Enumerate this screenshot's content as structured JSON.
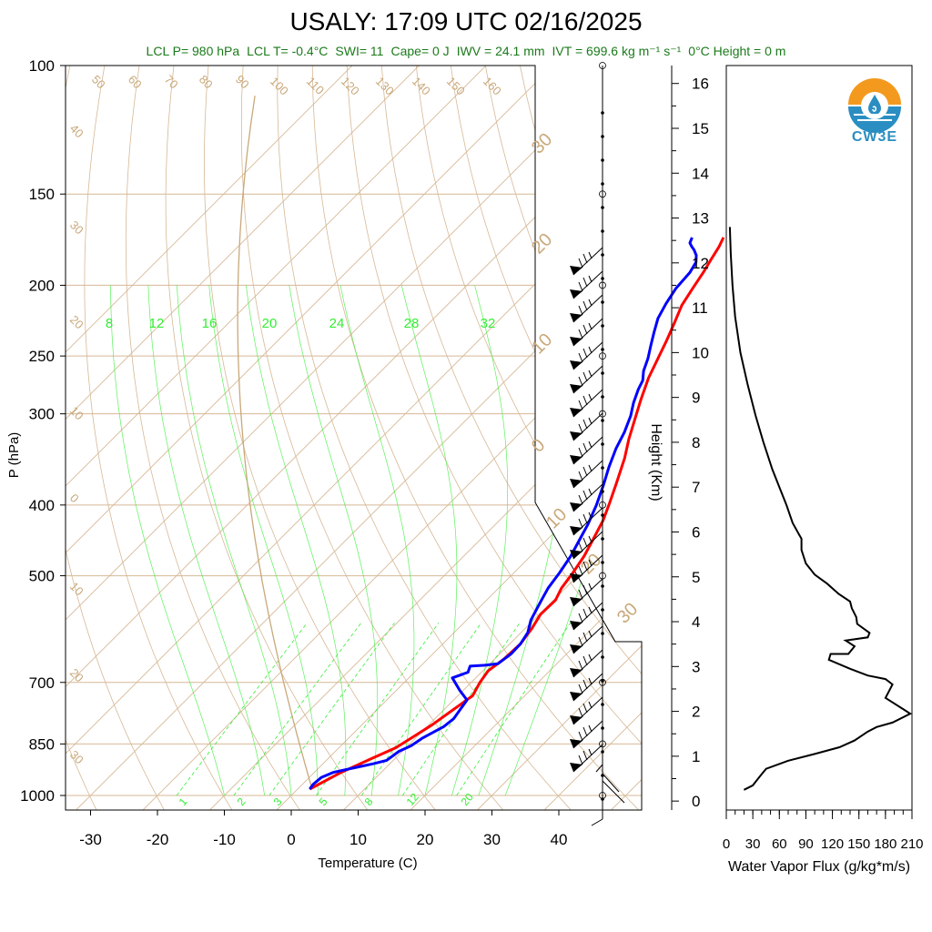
{
  "header": {
    "title": "USALY: 17:09 UTC 02/16/2025",
    "stats": [
      "LCL P= 980 hPa",
      "LCL T= -0.4°C",
      "SWI= 11",
      "Cape= 0 J",
      "IWV = 24.1 mm",
      "IVT = 699.6 kg m⁻¹ s⁻¹",
      "0°C Height = 0 m"
    ]
  },
  "logo": {
    "text": "CW3E",
    "icon": "cw3e-water-drop-logo",
    "colors": {
      "top": "#f39a1e",
      "bottom": "#2a8ec2"
    }
  },
  "colors": {
    "temperature": "#ff0000",
    "dewpoint": "#0000ff",
    "background_lines": "#d6b896",
    "mixing_ratio": "#33ee33",
    "stats_text": "#1a7a1a"
  },
  "chart_data": [
    {
      "type": "line",
      "kind": "skew-t",
      "xlabel": "Temperature (C)",
      "ylabel": "P (hPa)",
      "xticks": [
        -30,
        -20,
        -10,
        0,
        10,
        20,
        30,
        40
      ],
      "yticks": [
        100,
        150,
        200,
        250,
        300,
        400,
        500,
        700,
        850,
        1000
      ],
      "xlim": [
        -33,
        52
      ],
      "ylim": [
        1000,
        100
      ],
      "y_scale": "log",
      "isotherm_labels": [
        "50",
        "60",
        "70",
        "80",
        "90",
        "100",
        "110",
        "120",
        "130",
        "140",
        "150",
        "160",
        "40",
        "30",
        "20",
        "10",
        "0",
        "10",
        "20",
        "30"
      ],
      "skew_labels_right": [
        "30",
        "20",
        "10",
        "0",
        "10",
        "20",
        "30"
      ],
      "mixing_ratio_labels_top": [
        "8",
        "12",
        "16",
        "20",
        "24",
        "28",
        "32"
      ],
      "mixing_ratio_labels_bottom": [
        "1",
        "2",
        "3",
        "5",
        "8",
        "12",
        "20"
      ],
      "series": [
        {
          "name": "Temperature",
          "color": "#ff0000",
          "points": [
            [
              1.8,
              980
            ],
            [
              4,
              930
            ],
            [
              6.5,
              890
            ],
            [
              8.5,
              860
            ],
            [
              9.5,
              830
            ],
            [
              10.5,
              800
            ],
            [
              11.2,
              770
            ],
            [
              12.2,
              730
            ],
            [
              11.3,
              700
            ],
            [
              10.8,
              675
            ],
            [
              11.4,
              650
            ],
            [
              11.6,
              620
            ],
            [
              11.0,
              590
            ],
            [
              10.2,
              565
            ],
            [
              10.3,
              540
            ],
            [
              9.4,
              520
            ],
            [
              8.8,
              495
            ],
            [
              8.0,
              470
            ],
            [
              6.8,
              445
            ],
            [
              5.5,
              420
            ],
            [
              3.9,
              398
            ],
            [
              1.8,
              372
            ],
            [
              -0.6,
              345
            ],
            [
              -2.8,
              325
            ],
            [
              -4.9,
              305
            ],
            [
              -6.9,
              287
            ],
            [
              -9.0,
              268
            ],
            [
              -10.5,
              252
            ],
            [
              -11.9,
              238
            ],
            [
              -13.4,
              225
            ],
            [
              -14.9,
              213
            ],
            [
              -15.8,
              202
            ],
            [
              -16.6,
              192
            ],
            [
              -17.4,
              184
            ],
            [
              -18.1,
              177
            ],
            [
              -18.8,
              172
            ]
          ]
        },
        {
          "name": "Dewpoint",
          "color": "#0000ff",
          "points": [
            [
              1.8,
              980
            ],
            [
              1.6,
              965
            ],
            [
              1.8,
              945
            ],
            [
              2.8,
              930
            ],
            [
              5.5,
              915
            ],
            [
              7.5,
              905
            ],
            [
              9.0,
              895
            ],
            [
              9.5,
              870
            ],
            [
              10.5,
              855
            ],
            [
              11.0,
              835
            ],
            [
              12.5,
              805
            ],
            [
              12.8,
              785
            ],
            [
              12.0,
              740
            ],
            [
              9.5,
              718
            ],
            [
              6.5,
              690
            ],
            [
              8.0,
              678
            ],
            [
              7.4,
              665
            ],
            [
              9.5,
              663
            ],
            [
              11.2,
              660
            ],
            [
              11.7,
              640
            ],
            [
              11.6,
              620
            ],
            [
              11.0,
              598
            ],
            [
              9.6,
              575
            ],
            [
              8.8,
              555
            ],
            [
              8.2,
              540
            ],
            [
              7.4,
              520
            ],
            [
              6.8,
              495
            ],
            [
              6.0,
              470
            ],
            [
              4.8,
              445
            ],
            [
              3.8,
              425
            ],
            [
              2.2,
              400
            ],
            [
              0.3,
              376
            ],
            [
              -1.6,
              355
            ],
            [
              -3.3,
              335
            ],
            [
              -4.5,
              318
            ],
            [
              -6.0,
              302
            ],
            [
              -7.5,
              290
            ],
            [
              -8.8,
              278
            ],
            [
              -9.5,
              270
            ],
            [
              -10.8,
              262
            ],
            [
              -12.0,
              252
            ],
            [
              -13.5,
              242
            ],
            [
              -15.0,
              232
            ],
            [
              -16.5,
              222
            ],
            [
              -17.5,
              212
            ],
            [
              -18.3,
              202
            ],
            [
              -18.6,
              192
            ],
            [
              -19.2,
              186
            ],
            [
              -20.2,
              182
            ],
            [
              -21.3,
              179
            ],
            [
              -22.2,
              177
            ],
            [
              -23.0,
              175
            ],
            [
              -23.5,
              172
            ]
          ]
        }
      ]
    },
    {
      "type": "line",
      "kind": "water-vapor-flux-profile",
      "xlabel": "Water Vapor Flux (g/kg*m/s)",
      "ylabel": "Height (Km)",
      "xticks": [
        0,
        30,
        60,
        90,
        120,
        150,
        180,
        210
      ],
      "yticks": [
        0,
        1,
        2,
        3,
        4,
        5,
        6,
        7,
        8,
        9,
        10,
        11,
        12,
        13,
        14,
        15,
        16
      ],
      "xlim": [
        0,
        210
      ],
      "ylim": [
        -0.2,
        16.4
      ],
      "series": [
        {
          "name": "Water Vapor Flux",
          "points": [
            [
              20,
              0.25
            ],
            [
              30,
              0.35
            ],
            [
              38,
              0.55
            ],
            [
              45,
              0.72
            ],
            [
              70,
              0.9
            ],
            [
              100,
              1.05
            ],
            [
              128,
              1.2
            ],
            [
              145,
              1.35
            ],
            [
              160,
              1.55
            ],
            [
              170,
              1.65
            ],
            [
              188,
              1.75
            ],
            [
              208,
              1.95
            ],
            [
              200,
              2.05
            ],
            [
              180,
              2.3
            ],
            [
              188,
              2.6
            ],
            [
              180,
              2.72
            ],
            [
              160,
              2.8
            ],
            [
              140,
              2.95
            ],
            [
              116,
              3.15
            ],
            [
              118,
              3.28
            ],
            [
              138,
              3.28
            ],
            [
              145,
              3.45
            ],
            [
              135,
              3.58
            ],
            [
              160,
              3.65
            ],
            [
              162,
              3.75
            ],
            [
              148,
              3.95
            ],
            [
              147,
              4.1
            ],
            [
              142,
              4.3
            ],
            [
              140,
              4.45
            ],
            [
              127,
              4.62
            ],
            [
              114,
              4.85
            ],
            [
              100,
              5.05
            ],
            [
              90,
              5.3
            ],
            [
              85,
              5.6
            ],
            [
              85,
              5.85
            ],
            [
              82,
              5.95
            ],
            [
              75,
              6.2
            ],
            [
              68,
              6.6
            ],
            [
              60,
              7.0
            ],
            [
              52,
              7.4
            ],
            [
              42,
              8.0
            ],
            [
              33,
              8.6
            ],
            [
              24,
              9.3
            ],
            [
              16,
              10.0
            ],
            [
              10,
              10.8
            ],
            [
              7,
              11.5
            ],
            [
              5,
              12.2
            ],
            [
              4,
              12.8
            ]
          ]
        }
      ]
    }
  ]
}
